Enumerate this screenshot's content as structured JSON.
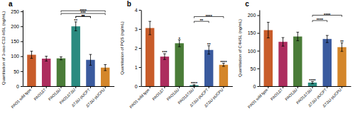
{
  "chart_data": [
    {
      "type": "bar",
      "title": "a",
      "ylabel": "Quantitation of 3-oxo-C12-HSL (ng/mL)",
      "categories": [
        "PAO1 wild type",
        "PAO1ΔT",
        "PAO1ΔU",
        "PAO1ΔTΔU",
        "ΔTΔU-pUCPT",
        "ΔTΔU-pUCPU"
      ],
      "values": [
        105,
        92,
        93,
        200,
        88,
        62
      ],
      "errors": [
        12,
        8,
        5,
        15,
        18,
        10
      ],
      "colors": [
        "#C85C2A",
        "#AD2D5E",
        "#4A7C38",
        "#2B8B80",
        "#3A5A9E",
        "#D4862A"
      ],
      "ylim": [
        0,
        255
      ],
      "yticks": [
        0,
        50,
        100,
        150,
        200,
        250
      ],
      "grid": false,
      "sig_above_bars": [
        null,
        null,
        null,
        "**",
        null,
        null
      ],
      "significance_bars": [
        {
          "x1": 3,
          "x2": 4,
          "y": 233,
          "label": "**"
        },
        {
          "x1": 3,
          "x2": 4,
          "y": 233,
          "label": "**"
        },
        {
          "x1": 2,
          "x2": 5,
          "y": 243,
          "label": "***"
        },
        {
          "x1": 2,
          "x2": 5,
          "y": 252,
          "label": "****"
        }
      ]
    },
    {
      "type": "bar",
      "title": "b",
      "ylabel": "Quantitation of PQS (ng/mL)",
      "categories": [
        "PAO1 wild type",
        "PAO1ΔT",
        "PAO1ΔU",
        "PAO1ΔTΔU",
        "ΔTΔU-pUCPT",
        "ΔTΔU-pUCPU"
      ],
      "values": [
        3.05,
        1.55,
        2.25,
        0.05,
        1.9,
        1.12
      ],
      "errors": [
        0.35,
        0.15,
        0.18,
        0.03,
        0.22,
        0.08
      ],
      "colors": [
        "#C85C2A",
        "#AD2D5E",
        "#4A7C38",
        "#2B8B80",
        "#3A5A9E",
        "#D4862A"
      ],
      "ylim": [
        0,
        4.0
      ],
      "yticks": [
        0,
        1,
        2,
        3,
        4
      ],
      "grid": false,
      "sig_above_bars": [
        null,
        "***",
        "*",
        "****",
        "**",
        "****"
      ],
      "significance_bars": [
        {
          "x1": 3,
          "x2": 4,
          "y": 3.4,
          "label": "**"
        },
        {
          "x1": 3,
          "x2": 5,
          "y": 3.65,
          "label": "****"
        }
      ]
    },
    {
      "type": "bar",
      "title": "c",
      "ylabel": "Quantitation of C4HSL (ng/mL)",
      "categories": [
        "PAO1 wild type",
        "PAO1ΔT",
        "PAO1ΔU",
        "PAO1ΔTΔU",
        "ΔTΔU-pUCPT",
        "ΔTΔU-pUCPU"
      ],
      "values": [
        158,
        125,
        140,
        10,
        133,
        110
      ],
      "errors": [
        22,
        12,
        12,
        3,
        10,
        12
      ],
      "colors": [
        "#C85C2A",
        "#AD2D5E",
        "#4A7C38",
        "#2B8B80",
        "#3A5A9E",
        "#D4862A"
      ],
      "ylim": [
        0,
        215
      ],
      "yticks": [
        0,
        50,
        100,
        150,
        200
      ],
      "grid": false,
      "sig_above_bars": [
        null,
        null,
        null,
        "****",
        null,
        "**"
      ],
      "significance_bars": [
        {
          "x1": 3,
          "x2": 4,
          "y": 185,
          "label": "****"
        },
        {
          "x1": 3,
          "x2": 5,
          "y": 200,
          "label": "****"
        }
      ]
    }
  ]
}
